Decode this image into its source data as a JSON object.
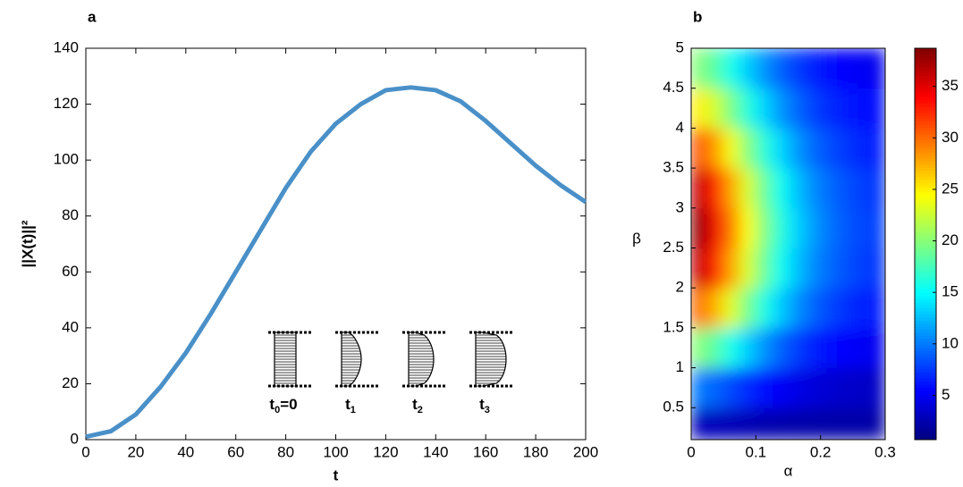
{
  "chart_data": [
    {
      "type": "line",
      "panel_label": "a",
      "x_label": "t",
      "y_label": "||X(t)||²",
      "x": [
        0,
        10,
        20,
        30,
        40,
        50,
        60,
        70,
        80,
        90,
        100,
        110,
        120,
        130,
        140,
        150,
        160,
        170,
        180,
        190,
        200
      ],
      "series": [
        {
          "color": "#4a90c8",
          "values": [
            1,
            3,
            9,
            19,
            31,
            45,
            60,
            75,
            90,
            103,
            113,
            120,
            125,
            126,
            125,
            121,
            114,
            106,
            98,
            91,
            85
          ]
        }
      ],
      "xlim": [
        0,
        200
      ],
      "xticks": [
        0,
        20,
        40,
        60,
        80,
        100,
        120,
        140,
        160,
        180,
        200
      ],
      "ylim": [
        0,
        140
      ],
      "yticks": [
        0,
        20,
        40,
        60,
        80,
        100,
        120,
        140
      ],
      "inset_labels": [
        {
          "main": "t",
          "sub": "0",
          "suffix": "=0"
        },
        {
          "main": "t",
          "sub": "1"
        },
        {
          "main": "t",
          "sub": "2"
        },
        {
          "main": "t",
          "sub": "3"
        }
      ]
    },
    {
      "type": "heatmap",
      "panel_label": "b",
      "x_label": "α",
      "y_label": "β",
      "x": [
        0.0125,
        0.0375,
        0.0625,
        0.0875,
        0.1125,
        0.1375,
        0.1625,
        0.1875,
        0.2125,
        0.2375,
        0.2625,
        0.2875
      ],
      "y": [
        0.25,
        0.75,
        1.25,
        1.75,
        2.25,
        2.75,
        3.25,
        3.75,
        4.25,
        4.75
      ],
      "z": [
        [
          3,
          2.9,
          2.8,
          2.6,
          2.5,
          2.4,
          2.3,
          2.3,
          2.2,
          2.2,
          2.2,
          2.2
        ],
        [
          10,
          9.2,
          8.1,
          7,
          6,
          5.2,
          4.6,
          4.1,
          3.8,
          3.5,
          3.4,
          3.3
        ],
        [
          20,
          18.2,
          15.7,
          13.2,
          11,
          9.2,
          7.8,
          6.7,
          6,
          5.4,
          5.1,
          4.9
        ],
        [
          30,
          27.2,
          23.3,
          19.4,
          16,
          13.2,
          11,
          9.3,
          8.2,
          7.3,
          6.8,
          6.5
        ],
        [
          36,
          32.6,
          27.8,
          23.1,
          19,
          15.6,
          12.9,
          10.8,
          9.5,
          8.5,
          7.8,
          7.4
        ],
        [
          38,
          34.4,
          29.4,
          24.3,
          20,
          16.4,
          13.5,
          11.4,
          9.9,
          8.8,
          8.1,
          7.8
        ],
        [
          36,
          32.6,
          27.8,
          23.1,
          19,
          15.6,
          12.9,
          10.8,
          9.5,
          8.5,
          7.8,
          7.4
        ],
        [
          31,
          28.1,
          24,
          20,
          16.5,
          13.6,
          11.3,
          9.5,
          8.4,
          7.5,
          6.9,
          6.6
        ],
        [
          25,
          22.7,
          19.5,
          16.3,
          13.5,
          11.2,
          9.4,
          8,
          7.1,
          6.4,
          5.9,
          5.7
        ],
        [
          20,
          18.2,
          15.7,
          13.2,
          11,
          9.2,
          7.8,
          6.7,
          6,
          5.4,
          5.1,
          4.9
        ]
      ],
      "xlim": [
        0,
        0.3
      ],
      "xticks": [
        0,
        0.1,
        0.2,
        0.3
      ],
      "ylim": [
        0.1,
        5
      ],
      "yticks": [
        0.5,
        1,
        1.5,
        2,
        2.5,
        3,
        3.5,
        4,
        4.5,
        5
      ],
      "colormap": "jet",
      "clim": [
        0.7,
        38.7
      ],
      "cticks": [
        5,
        10,
        15,
        20,
        25,
        30,
        35
      ]
    }
  ]
}
